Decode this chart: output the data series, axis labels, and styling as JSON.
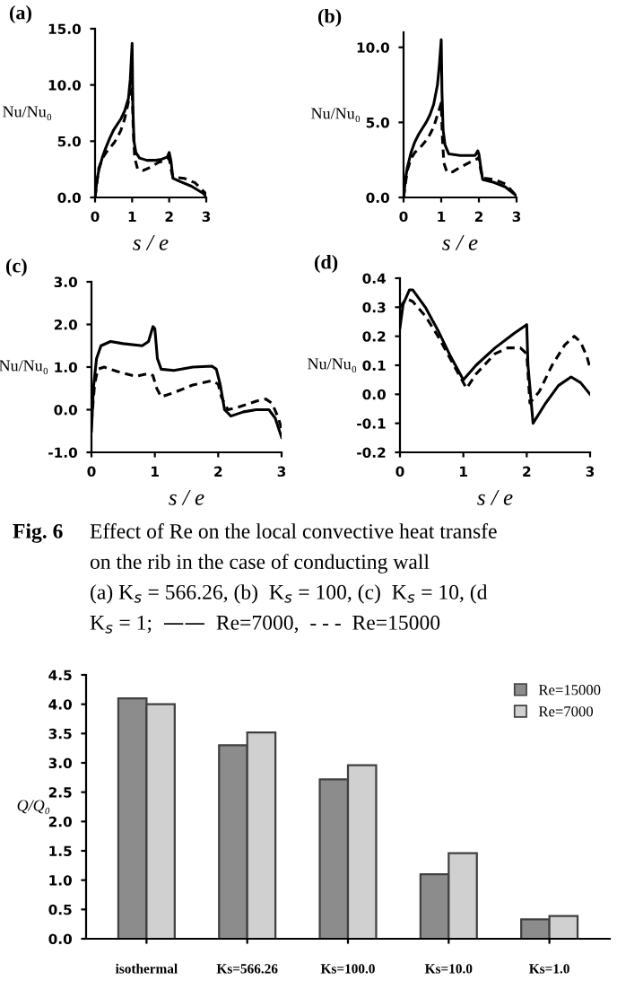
{
  "chart_data": [
    {
      "type": "line",
      "title": "(a)",
      "xlabel": "s / e",
      "ylabel": "Nu/Nu₀",
      "xlim": [
        0,
        3
      ],
      "ylim": [
        0,
        15
      ],
      "xticks": [
        0,
        1,
        2,
        3
      ],
      "yticks": [
        {
          "value": 0,
          "label": "0.0"
        },
        {
          "value": 5,
          "label": "5.0"
        },
        {
          "value": 10,
          "label": "10.0"
        },
        {
          "value": 15,
          "label": "15.0"
        }
      ],
      "series": [
        {
          "color": "#000000",
          "line_style": "solid",
          "x": [
            0,
            0.05,
            0.1,
            0.2,
            0.3,
            0.4,
            0.5,
            0.6,
            0.7,
            0.8,
            0.9,
            0.95,
            1.0,
            1.02,
            1.05,
            1.1,
            1.2,
            1.4,
            1.6,
            1.8,
            1.95,
            2.0,
            2.05,
            2.1,
            2.3,
            2.6,
            2.9,
            3.0
          ],
          "values": [
            0,
            1.5,
            2.4,
            3.6,
            4.5,
            5.3,
            6.0,
            6.5,
            7.0,
            7.7,
            8.8,
            10.5,
            13.7,
            8,
            5,
            4.0,
            3.5,
            3.3,
            3.3,
            3.4,
            3.6,
            4.0,
            3.2,
            1.7,
            1.4,
            1.0,
            0.4,
            0.1
          ]
        },
        {
          "color": "#000000",
          "line_style": "dashed",
          "x": [
            0,
            0.1,
            0.2,
            0.3,
            0.4,
            0.5,
            0.6,
            0.7,
            0.8,
            0.9,
            1.0,
            1.03,
            1.07,
            1.15,
            1.3,
            1.5,
            1.7,
            1.9,
            2.0,
            2.05,
            2.1,
            2.4,
            2.7,
            3.0
          ],
          "values": [
            0,
            2.6,
            3.5,
            4.0,
            4.4,
            4.8,
            5.3,
            6.0,
            7.0,
            8.5,
            9.8,
            6,
            3.5,
            2.5,
            2.4,
            2.7,
            3.1,
            3.3,
            3.5,
            2.5,
            1.8,
            1.7,
            1.3,
            0.3
          ]
        }
      ]
    },
    {
      "type": "line",
      "title": "(b)",
      "xlabel": "s / e",
      "ylabel": "Nu/Nu₀",
      "xlim": [
        0,
        3
      ],
      "ylim": [
        0,
        11
      ],
      "xticks": [
        0,
        1,
        2,
        3
      ],
      "yticks": [
        {
          "value": 0,
          "label": "0.0"
        },
        {
          "value": 5,
          "label": "5.0"
        },
        {
          "value": 10,
          "label": "10.0"
        }
      ],
      "series": [
        {
          "color": "#000000",
          "line_style": "solid",
          "x": [
            0,
            0.05,
            0.1,
            0.2,
            0.3,
            0.4,
            0.5,
            0.6,
            0.7,
            0.8,
            0.9,
            0.95,
            1.0,
            1.02,
            1.05,
            1.1,
            1.2,
            1.5,
            1.9,
            1.97,
            2.0,
            2.05,
            2.1,
            2.4,
            2.7,
            3.0
          ],
          "values": [
            0,
            1.2,
            2.0,
            3.0,
            3.7,
            4.2,
            4.6,
            5.0,
            5.5,
            6.2,
            7.5,
            8.8,
            10.5,
            7,
            4.5,
            3.5,
            2.9,
            2.8,
            2.8,
            3.1,
            2.9,
            2.0,
            1.2,
            1.0,
            0.7,
            0.1
          ]
        },
        {
          "color": "#000000",
          "line_style": "dashed",
          "x": [
            0,
            0.1,
            0.2,
            0.3,
            0.4,
            0.5,
            0.6,
            0.7,
            0.8,
            0.9,
            1.0,
            1.03,
            1.07,
            1.15,
            1.3,
            1.5,
            1.8,
            1.98,
            2.0,
            2.05,
            2.1,
            2.4,
            2.7,
            3.0
          ],
          "values": [
            0,
            1.8,
            2.6,
            3.0,
            3.2,
            3.5,
            3.8,
            4.2,
            4.7,
            5.5,
            6.3,
            4,
            2.3,
            1.7,
            1.7,
            2.0,
            2.4,
            2.6,
            2.7,
            1.8,
            1.3,
            1.2,
            0.9,
            0.1
          ]
        }
      ]
    },
    {
      "type": "line",
      "title": "(c)",
      "xlabel": "s / e",
      "ylabel": "Nu/Nu₀",
      "xlim": [
        0,
        3
      ],
      "ylim": [
        -1,
        3
      ],
      "xticks": [
        0,
        1,
        2,
        3
      ],
      "yticks": [
        {
          "value": -1,
          "label": "-1.0"
        },
        {
          "value": 0,
          "label": "0.0"
        },
        {
          "value": 1,
          "label": "1.0"
        },
        {
          "value": 2,
          "label": "2.0"
        },
        {
          "value": 3,
          "label": "3.0"
        }
      ],
      "series": [
        {
          "color": "#000000",
          "line_style": "solid",
          "x": [
            0,
            0.03,
            0.08,
            0.15,
            0.3,
            0.5,
            0.8,
            0.9,
            0.97,
            1.0,
            1.04,
            1.1,
            1.3,
            1.6,
            1.9,
            1.97,
            2.03,
            2.1,
            2.2,
            2.4,
            2.6,
            2.8,
            2.9,
            3.0
          ],
          "values": [
            -0.5,
            0.5,
            1.2,
            1.5,
            1.6,
            1.55,
            1.5,
            1.6,
            1.95,
            1.9,
            1.2,
            0.95,
            0.92,
            1.0,
            1.02,
            0.95,
            0.6,
            0.0,
            -0.15,
            -0.05,
            0.0,
            0.0,
            -0.2,
            -0.65
          ]
        },
        {
          "color": "#000000",
          "line_style": "dashed",
          "x": [
            0,
            0.05,
            0.1,
            0.2,
            0.4,
            0.7,
            0.9,
            0.97,
            1.03,
            1.1,
            1.3,
            1.6,
            1.9,
            2.0,
            2.05,
            2.15,
            2.3,
            2.6,
            2.75,
            2.85,
            2.95,
            3.0
          ],
          "values": [
            -0.3,
            0.6,
            0.95,
            1.0,
            0.9,
            0.78,
            0.85,
            0.8,
            0.5,
            0.3,
            0.4,
            0.58,
            0.68,
            0.6,
            0.3,
            0.0,
            0.05,
            0.2,
            0.25,
            0.15,
            -0.2,
            -0.45
          ]
        }
      ]
    },
    {
      "type": "line",
      "title": "(d)",
      "xlabel": "s / e",
      "ylabel": "Nu/Nu₀",
      "xlim": [
        0,
        3
      ],
      "ylim": [
        -0.2,
        0.4
      ],
      "xticks": [
        0,
        1,
        2,
        3
      ],
      "yticks": [
        {
          "value": -0.2,
          "label": "-0.2"
        },
        {
          "value": -0.1,
          "label": "-0.1"
        },
        {
          "value": 0,
          "label": "0.0"
        },
        {
          "value": 0.1,
          "label": "0.1"
        },
        {
          "value": 0.2,
          "label": "0.2"
        },
        {
          "value": 0.3,
          "label": "0.3"
        },
        {
          "value": 0.4,
          "label": "0.4"
        }
      ],
      "series": [
        {
          "color": "#000000",
          "line_style": "solid",
          "x": [
            0,
            0.05,
            0.15,
            0.2,
            0.4,
            0.6,
            0.8,
            1.0,
            1.2,
            1.5,
            1.8,
            2.0,
            2.02,
            2.1,
            2.3,
            2.5,
            2.7,
            2.85,
            3.0
          ],
          "values": [
            0.23,
            0.31,
            0.36,
            0.36,
            0.3,
            0.22,
            0.13,
            0.05,
            0.1,
            0.16,
            0.21,
            0.24,
            0.1,
            -0.1,
            -0.03,
            0.03,
            0.06,
            0.04,
            0.0
          ]
        },
        {
          "color": "#000000",
          "line_style": "dashed",
          "x": [
            0,
            0.1,
            0.2,
            0.4,
            0.6,
            0.8,
            1.05,
            1.2,
            1.5,
            1.7,
            1.9,
            2.0,
            2.05,
            2.2,
            2.4,
            2.6,
            2.75,
            2.85,
            2.95,
            3.0
          ],
          "values": [
            0.3,
            0.33,
            0.32,
            0.27,
            0.2,
            0.12,
            0.02,
            0.07,
            0.14,
            0.16,
            0.16,
            0.14,
            -0.03,
            0.01,
            0.1,
            0.17,
            0.2,
            0.18,
            0.13,
            0.09
          ]
        }
      ],
      "annotations": [
        "Fig. 6",
        "Effect of Re on the local convective heat transfe",
        "on the rib in the case of conducting wall",
        "(a) K$_{s}$ = 566.26, (b)  K$_{s}$ = 100, (c)  K$_{s}$ = 10, (d",
        "K$_{s}$ = 1;  ——  Re=7000,  - - -  Re=15000"
      ]
    },
    {
      "type": "bar",
      "ylabel": "Q/Q₀",
      "categories": [
        "isothermal",
        "Ks=566.26",
        "Ks=100.0",
        "Ks=10.0",
        "Ks=1.0"
      ],
      "ylim": [
        0,
        4.5
      ],
      "yticks": [
        {
          "value": 0,
          "label": "0.0"
        },
        {
          "value": 0.5,
          "label": "0.5"
        },
        {
          "value": 1,
          "label": "1.0"
        },
        {
          "value": 1.5,
          "label": "1.5"
        },
        {
          "value": 2,
          "label": "2.0"
        },
        {
          "value": 2.5,
          "label": "2.5"
        },
        {
          "value": 3,
          "label": "3.0"
        },
        {
          "value": 3.5,
          "label": "3.5"
        },
        {
          "value": 4,
          "label": "4.0"
        },
        {
          "value": 4.5,
          "label": "4.5"
        }
      ],
      "legend": "top right",
      "series": [
        {
          "name": "Re=15000",
          "color": "#8c8c8c",
          "values": [
            4.1,
            3.3,
            2.72,
            1.1,
            0.33
          ]
        },
        {
          "name": "Re=7000",
          "color": "#d0d0d0",
          "values": [
            4.0,
            3.52,
            2.96,
            1.46,
            0.39
          ]
        }
      ]
    }
  ]
}
